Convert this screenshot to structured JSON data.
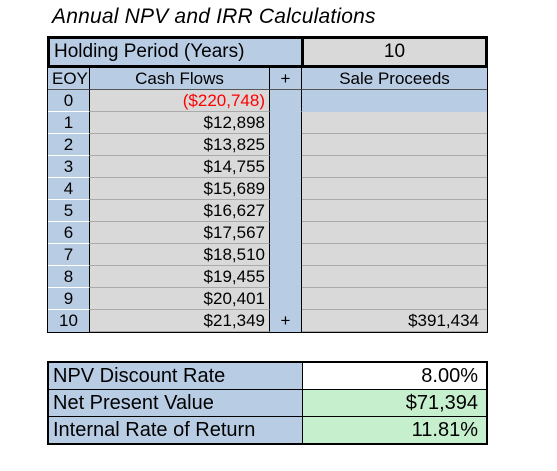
{
  "title": "Annual NPV and IRR Calculations",
  "holding_period": {
    "label": "Holding Period (Years)",
    "value": "10"
  },
  "headers": {
    "eoy": "EOY",
    "cash_flows": "Cash Flows",
    "plus": "+",
    "sale_proceeds": "Sale Proceeds"
  },
  "rows": [
    {
      "eoy": "0",
      "cf": "($220,748)",
      "plus": "",
      "sale": ""
    },
    {
      "eoy": "1",
      "cf": "$12,898",
      "plus": "",
      "sale": ""
    },
    {
      "eoy": "2",
      "cf": "$13,825",
      "plus": "",
      "sale": ""
    },
    {
      "eoy": "3",
      "cf": "$14,755",
      "plus": "",
      "sale": ""
    },
    {
      "eoy": "4",
      "cf": "$15,689",
      "plus": "",
      "sale": ""
    },
    {
      "eoy": "5",
      "cf": "$16,627",
      "plus": "",
      "sale": ""
    },
    {
      "eoy": "6",
      "cf": "$17,567",
      "plus": "",
      "sale": ""
    },
    {
      "eoy": "7",
      "cf": "$18,510",
      "plus": "",
      "sale": ""
    },
    {
      "eoy": "8",
      "cf": "$19,455",
      "plus": "",
      "sale": ""
    },
    {
      "eoy": "9",
      "cf": "$20,401",
      "plus": "",
      "sale": ""
    },
    {
      "eoy": "10",
      "cf": "$21,349",
      "plus": "+",
      "sale": "$391,434"
    }
  ],
  "results": [
    {
      "label": "NPV Discount Rate",
      "value": "8.00%"
    },
    {
      "label": "Net Present Value",
      "value": "$71,394"
    },
    {
      "label": "Internal Rate of Return",
      "value": "11.81%"
    }
  ],
  "colors": {
    "header_blue": "#b8cce4",
    "input_gray": "#d9d9d9",
    "result_green": "#c6efce",
    "negative_red": "#ff0000"
  }
}
